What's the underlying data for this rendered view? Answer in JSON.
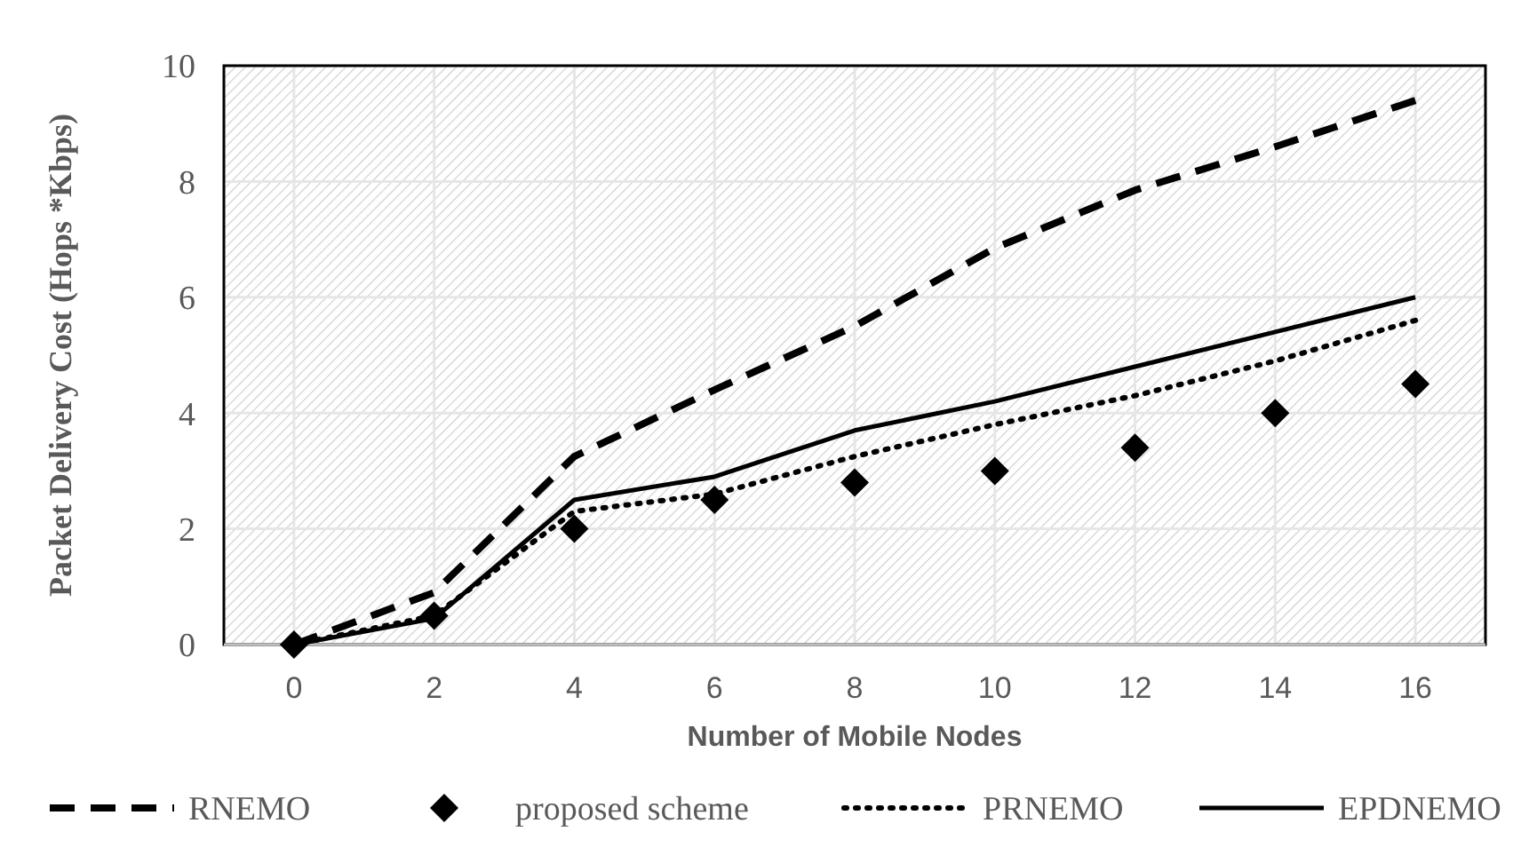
{
  "chart_data": {
    "type": "line",
    "xlabel": "Number of Mobile Nodes",
    "ylabel": "Packet Delivery Cost (Hops *Kbps)",
    "categories": [
      "0",
      "2",
      "4",
      "6",
      "8",
      "10",
      "12",
      "14",
      "16"
    ],
    "series": [
      {
        "name": "RNEMO",
        "color": "#000000",
        "line_style": "dashed",
        "marker": "none",
        "values": [
          0,
          0.9,
          3.25,
          4.4,
          5.5,
          6.85,
          7.85,
          8.6,
          9.4
        ]
      },
      {
        "name": "proposed scheme",
        "type": "scatter",
        "color": "#000000",
        "marker": "diamond",
        "values": [
          0,
          0.5,
          2.0,
          2.5,
          2.8,
          3.0,
          3.4,
          4.0,
          4.5
        ]
      },
      {
        "name": "PRNEMO",
        "color": "#000000",
        "line_style": "dotted",
        "marker": "none",
        "values": [
          0,
          0.5,
          2.3,
          2.6,
          3.25,
          3.8,
          4.3,
          4.9,
          5.6
        ]
      },
      {
        "name": "EPDNEMO",
        "color": "#000000",
        "line_style": "solid",
        "marker": "none",
        "values": [
          0,
          0.45,
          2.5,
          2.9,
          3.7,
          4.2,
          4.8,
          5.4,
          6.0
        ]
      }
    ],
    "ylim": [
      0,
      10
    ],
    "yticks": [
      0,
      2,
      4,
      6,
      8,
      10
    ],
    "grid": true,
    "legend": "bottom"
  }
}
